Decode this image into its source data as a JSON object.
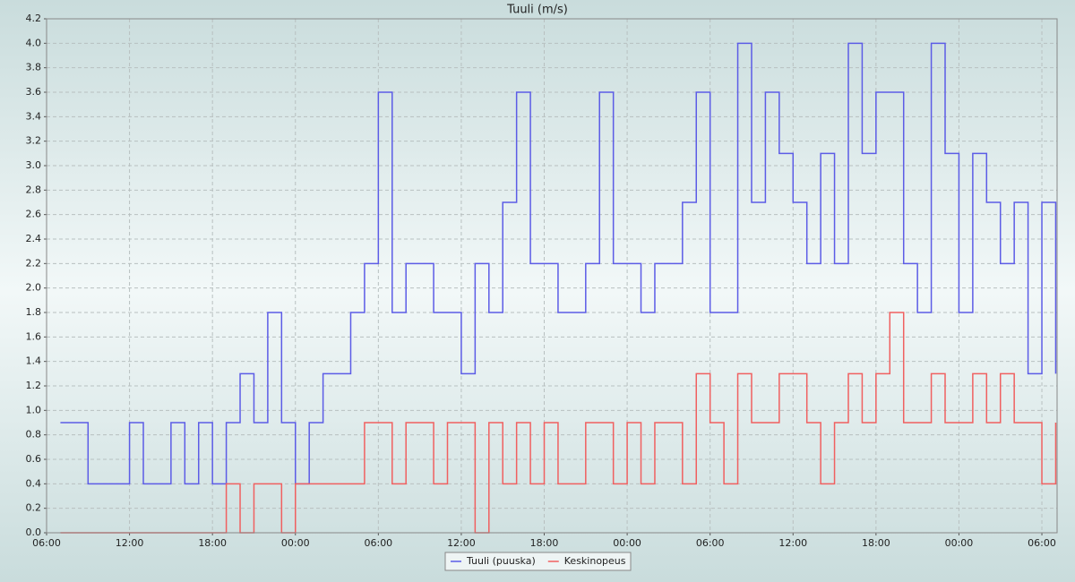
{
  "chart_data": {
    "type": "step",
    "title": "Tuuli (m/s)",
    "x": [
      1,
      2,
      3,
      4,
      5,
      6,
      7,
      8,
      9,
      10,
      11,
      12,
      13,
      14,
      15,
      16,
      17,
      18,
      19,
      20,
      21,
      22,
      23,
      24,
      25,
      26,
      27,
      28,
      29,
      30,
      31,
      32,
      33,
      34,
      35,
      36,
      37,
      38,
      39,
      40,
      41,
      42,
      43,
      44,
      45,
      46,
      47,
      48,
      49,
      50,
      51,
      52,
      53,
      54,
      55,
      56,
      57,
      58,
      59,
      60,
      61,
      62,
      63,
      64,
      65,
      66,
      67,
      68,
      69,
      70,
      71,
      72,
      73
    ],
    "series": [
      {
        "name": "Tuuli (puuska)",
        "color": "#5c5ce6",
        "values": [
          0.9,
          0.9,
          0.4,
          0.4,
          0.4,
          0.9,
          0.4,
          0.4,
          0.9,
          0.4,
          0.9,
          0.4,
          0.9,
          1.3,
          0.9,
          1.8,
          0.9,
          0.4,
          0.9,
          1.3,
          1.3,
          1.8,
          2.2,
          3.6,
          1.8,
          2.2,
          2.2,
          1.8,
          1.8,
          1.3,
          2.2,
          1.8,
          2.7,
          3.6,
          2.2,
          2.2,
          1.8,
          1.8,
          2.2,
          3.6,
          2.2,
          2.2,
          1.8,
          2.2,
          2.2,
          2.7,
          3.6,
          1.8,
          1.8,
          4.0,
          2.7,
          3.6,
          3.1,
          2.7,
          2.2,
          3.1,
          2.2,
          4.0,
          3.1,
          3.6,
          3.6,
          2.2,
          1.8,
          4.0,
          3.1,
          1.8,
          3.1,
          2.7,
          2.2,
          2.7,
          1.3,
          2.7,
          1.3
        ]
      },
      {
        "name": "Keskinopeus",
        "color": "#f06060",
        "values": [
          0,
          0,
          0,
          0,
          0,
          0,
          0,
          0,
          0,
          0,
          0,
          0,
          0.4,
          0,
          0.4,
          0.4,
          0,
          0.4,
          0.4,
          0.4,
          0.4,
          0.4,
          0.9,
          0.9,
          0.4,
          0.9,
          0.9,
          0.4,
          0.9,
          0.9,
          0,
          0.9,
          0.4,
          0.9,
          0.4,
          0.9,
          0.4,
          0.4,
          0.9,
          0.9,
          0.4,
          0.9,
          0.4,
          0.9,
          0.9,
          0.4,
          1.3,
          0.9,
          0.4,
          1.3,
          0.9,
          0.9,
          1.3,
          1.3,
          0.9,
          0.4,
          0.9,
          1.3,
          0.9,
          1.3,
          1.8,
          0.9,
          0.9,
          1.3,
          0.9,
          0.9,
          1.3,
          0.9,
          1.3,
          0.9,
          0.9,
          0.4,
          0.9
        ]
      }
    ],
    "xlim": [
      0,
      73.1
    ],
    "xticks": [
      {
        "value": 0,
        "label": "06:00"
      },
      {
        "value": 6,
        "label": "12:00"
      },
      {
        "value": 12,
        "label": "18:00"
      },
      {
        "value": 18,
        "label": "00:00"
      },
      {
        "value": 24,
        "label": "06:00"
      },
      {
        "value": 30,
        "label": "12:00"
      },
      {
        "value": 36,
        "label": "18:00"
      },
      {
        "value": 42,
        "label": "00:00"
      },
      {
        "value": 48,
        "label": "06:00"
      },
      {
        "value": 54,
        "label": "12:00"
      },
      {
        "value": 60,
        "label": "18:00"
      },
      {
        "value": 66,
        "label": "00:00"
      },
      {
        "value": 72,
        "label": "06:00"
      }
    ],
    "ylim": [
      0,
      4.2
    ],
    "yticks": [
      {
        "value": 0,
        "label": "0.0"
      },
      0.2,
      0.4,
      0.6,
      0.8,
      {
        "value": 1,
        "label": "1.0"
      },
      1.2,
      1.4,
      1.6,
      1.8,
      {
        "value": 2,
        "label": "2.0"
      },
      2.2,
      2.4,
      2.6,
      2.8,
      {
        "value": 3,
        "label": "3.0"
      },
      3.2,
      3.4,
      3.6,
      3.8,
      {
        "value": 4,
        "label": "4.0"
      },
      4.2
    ],
    "grid": true,
    "legend": "bottom"
  }
}
